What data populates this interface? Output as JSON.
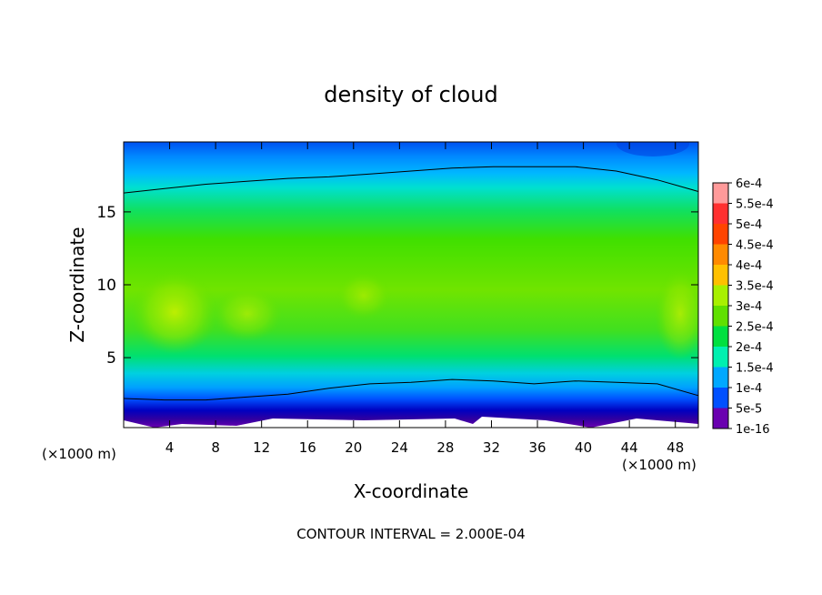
{
  "chart_data": {
    "type": "heatmap",
    "title": "density of cloud",
    "xlabel": "X-coordinate",
    "ylabel": "Z-coordinate",
    "x_unit_left": "(×1000 m)",
    "x_unit_right": "(×1000 m)",
    "footer": "CONTOUR INTERVAL = 2.000E-04",
    "x_ticks": [
      4,
      8,
      12,
      16,
      20,
      24,
      28,
      32,
      36,
      40,
      44,
      48
    ],
    "y_ticks": [
      5,
      10,
      15
    ],
    "xlim": [
      0,
      50
    ],
    "ylim": [
      0.2,
      19.8
    ],
    "colorbar": {
      "labels": [
        "6e-4",
        "5.5e-4",
        "5e-4",
        "4.5e-4",
        "4e-4",
        "3.5e-4",
        "3e-4",
        "2.5e-4",
        "2e-4",
        "1.5e-4",
        "1e-4",
        "5e-5",
        "1e-16"
      ],
      "levels": [
        0.0006,
        0.00055,
        0.0005,
        0.00045,
        0.0004,
        0.00035,
        0.0003,
        0.00025,
        0.0002,
        0.00015,
        0.0001,
        5e-05,
        1e-16
      ],
      "colors": [
        "#ff9a9a",
        "#ff3030",
        "#ff4400",
        "#ff8a00",
        "#ffc000",
        "#a8f000",
        "#60e000",
        "#00e040",
        "#00f0b0",
        "#00a8ff",
        "#0050ff",
        "#0000b0",
        "#6a00b0"
      ]
    },
    "contour_lines": [
      {
        "level": 0.0002,
        "z_values": [
          16.3,
          16.6,
          16.9,
          17.1,
          17.3,
          17.4,
          17.6,
          17.8,
          18.0,
          18.1,
          18.1,
          18.1,
          17.8,
          17.2,
          16.4
        ]
      },
      {
        "level": 0.0002,
        "z_values": [
          2.2,
          2.1,
          2.1,
          2.3,
          2.5,
          2.9,
          3.2,
          3.3,
          3.5,
          3.4,
          3.2,
          3.4,
          3.3,
          3.2,
          2.4
        ]
      }
    ]
  }
}
